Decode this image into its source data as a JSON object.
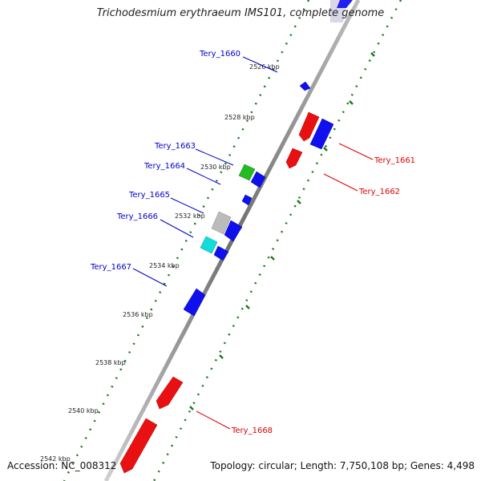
{
  "title": "Trichodesmium erythraeum IMS101, complete genome",
  "accession": "Accession: NC_008312",
  "summary": "Topology: circular; Length: 7,750,108 bp; Genes: 4,498",
  "colors": {
    "forward_label": "#0000cc",
    "reverse_label": "#e00000",
    "tick": "#1a7a1a",
    "backbone": "#8a8a8a"
  },
  "ruler": [
    {
      "label": "2526 kbp"
    },
    {
      "label": "2528 kbp"
    },
    {
      "label": "2530 kbp"
    },
    {
      "label": "2532 kbp"
    },
    {
      "label": "2534 kbp"
    },
    {
      "label": "2536 kbp"
    },
    {
      "label": "2538 kbp"
    },
    {
      "label": "2540 kbp"
    },
    {
      "label": "2542 kbp"
    }
  ],
  "genes": [
    {
      "name": "Tery_1660",
      "strand": "forward"
    },
    {
      "name": "Tery_1661",
      "strand": "reverse"
    },
    {
      "name": "Tery_1662",
      "strand": "reverse"
    },
    {
      "name": "Tery_1663",
      "strand": "forward"
    },
    {
      "name": "Tery_1664",
      "strand": "forward"
    },
    {
      "name": "Tery_1665",
      "strand": "forward"
    },
    {
      "name": "Tery_1666",
      "strand": "forward"
    },
    {
      "name": "Tery_1667",
      "strand": "forward"
    },
    {
      "name": "Tery_1668",
      "strand": "reverse"
    }
  ]
}
